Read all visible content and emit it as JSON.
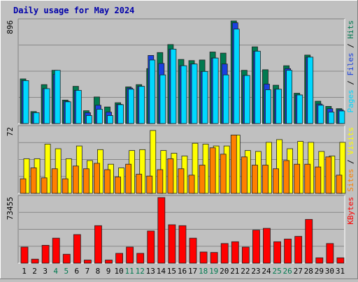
{
  "chart_data": {
    "type": "bar",
    "title": "Daily usage for May 2024",
    "categories": [
      "1",
      "2",
      "3",
      "4",
      "5",
      "6",
      "7",
      "8",
      "9",
      "10",
      "11",
      "12",
      "13",
      "14",
      "15",
      "16",
      "17",
      "18",
      "19",
      "20",
      "21",
      "22",
      "23",
      "24",
      "25",
      "26",
      "27",
      "28",
      "29",
      "30",
      "31"
    ],
    "weekend_categories": [
      "4",
      "5",
      "11",
      "12",
      "18",
      "19",
      "25",
      "26"
    ],
    "panels": [
      {
        "id": "hits",
        "ymax_label": "896",
        "ymax": 896,
        "legend": [
          "Pages",
          "Files",
          "Hits"
        ],
        "series": [
          {
            "name": "Hits",
            "color": "#007A50",
            "values": [
              390,
              105,
              340,
              465,
              205,
              325,
              112,
              232,
              145,
              182,
              320,
              340,
              480,
              620,
              690,
              560,
              550,
              555,
              625,
              615,
              896,
              465,
              670,
              470,
              335,
              505,
              265,
              598,
              195,
              150,
              130
            ]
          },
          {
            "name": "Files",
            "color": "#1A40E0",
            "values": [
              375,
              95,
              305,
              430,
              195,
              290,
              95,
              160,
              100,
              168,
              310,
              325,
              595,
              525,
              650,
              505,
              520,
              455,
              572,
              520,
              880,
              420,
              632,
              345,
              300,
              480,
              250,
              580,
              170,
              130,
              120
            ]
          },
          {
            "name": "Pages",
            "color": "#00D8FF",
            "values": [
              375,
              95,
              305,
              465,
              190,
              290,
              70,
              125,
              70,
              165,
              300,
              325,
              555,
              425,
              650,
              505,
              520,
              455,
              572,
              425,
              825,
              420,
              632,
              295,
              300,
              465,
              250,
              580,
              160,
              100,
              110
            ]
          }
        ]
      },
      {
        "id": "visits",
        "ymax_label": "72",
        "ymax": 72,
        "legend": [
          "Sites",
          "Visits"
        ],
        "series": [
          {
            "name": "Visits",
            "color": "#FFFF00",
            "values": [
              38,
              38,
              54,
              49,
              38,
              52,
              36,
              48,
              32,
              28,
              47,
              48,
              69,
              47,
              44,
              41,
              55,
              54,
              52,
              52,
              64,
              47,
              46,
              56,
              59,
              49,
              57,
              56,
              46,
              41,
              56
            ]
          },
          {
            "name": "Sites",
            "color": "#FF8000",
            "values": [
              16,
              28,
              17,
              27,
              16,
              30,
              27,
              33,
              26,
              18,
              32,
              21,
              19,
              26,
              38,
              27,
              20,
              31,
              50,
              43,
              64,
              40,
              31,
              31,
              27,
              36,
              32,
              32,
              29,
              40,
              20
            ]
          }
        ]
      },
      {
        "id": "kbytes",
        "ymax_label": "73455",
        "ymax": 73455,
        "legend": [
          "KBytes"
        ],
        "series": [
          {
            "name": "KBytes",
            "color": "#FF0000",
            "values": [
              18000,
              4500,
              20000,
              28000,
              10000,
              32000,
              3500,
              42000,
              3500,
              11000,
              18000,
              11000,
              36000,
              73455,
              43000,
              42000,
              28000,
              12500,
              12000,
              22000,
              24000,
              18000,
              37000,
              39000,
              24000,
              27000,
              30000,
              49000,
              6000,
              22000,
              6000
            ]
          }
        ]
      }
    ]
  }
}
